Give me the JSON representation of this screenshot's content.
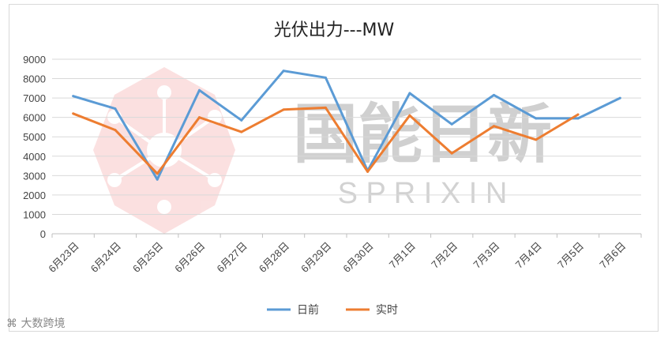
{
  "chart_data": {
    "type": "line",
    "title": "光伏出力---MW",
    "categories": [
      "6月23日",
      "6月24日",
      "6月25日",
      "6月26日",
      "6月27日",
      "6月28日",
      "6月29日",
      "6月30日",
      "7月1日",
      "7月2日",
      "7月3日",
      "7月4日",
      "7月5日",
      "7月6日"
    ],
    "series": [
      {
        "name": "日前",
        "color": "#5b9bd5",
        "values": [
          7100,
          6450,
          2800,
          7400,
          5850,
          8400,
          8050,
          3250,
          7250,
          5650,
          7150,
          5950,
          5950,
          7000
        ]
      },
      {
        "name": "实时",
        "color": "#ed7d31",
        "values": [
          6200,
          5350,
          3100,
          6000,
          5250,
          6400,
          6500,
          3200,
          6100,
          4150,
          5550,
          4850,
          6150,
          null
        ]
      }
    ],
    "ylim": [
      0,
      9000
    ],
    "yticks": [
      0,
      1000,
      2000,
      3000,
      4000,
      5000,
      6000,
      7000,
      8000,
      9000
    ],
    "grid": true,
    "legend_position": "bottom"
  },
  "watermark": {
    "text_cn": "国能日新",
    "text_en": "S P R I X I N"
  },
  "footer": {
    "text": "大数跨境"
  }
}
